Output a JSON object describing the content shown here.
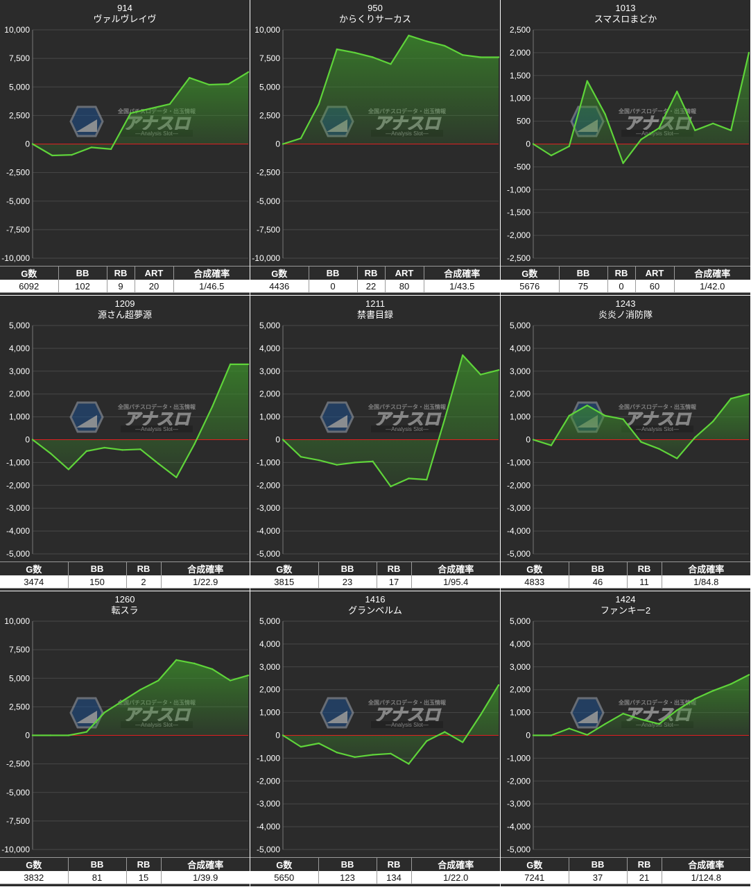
{
  "headers": {
    "g": "G数",
    "bb": "BB",
    "rb": "RB",
    "art": "ART",
    "rate": "合成確率"
  },
  "watermark": {
    "brand": "アナスロ",
    "sub": "—Analysis Slot—",
    "tagline": "全国パチスロデータ・出玉情報"
  },
  "colors": {
    "line": "#5fd43a",
    "zero": "#e02020",
    "fill_top": "#3b8f2a",
    "bg": "#2b2b2b",
    "grid": "#484848"
  },
  "chart_data": [
    {
      "type": "area",
      "number": "914",
      "name": "ヴァルヴレイヴ",
      "ylim": [
        -10000,
        10000
      ],
      "yticks": [
        10000,
        7500,
        5000,
        2500,
        0,
        -2500,
        -5000,
        -7500,
        -10000
      ],
      "ytick_labels": [
        "10,000",
        "7,500",
        "5,000",
        "2,500",
        "0",
        "-2,500",
        "-5,000",
        "-7,500",
        "-10,000"
      ],
      "values": [
        0,
        -1000,
        -950,
        -300,
        -450,
        2700,
        3100,
        3500,
        5800,
        5200,
        5250,
        6300
      ],
      "stats": {
        "g": "6092",
        "bb": "102",
        "rb": "9",
        "art": "20",
        "rate": "1/46.5"
      }
    },
    {
      "type": "area",
      "number": "950",
      "name": "からくりサーカス",
      "ylim": [
        -10000,
        10000
      ],
      "yticks": [
        10000,
        7500,
        5000,
        2500,
        0,
        -2500,
        -5000,
        -7500,
        -10000
      ],
      "ytick_labels": [
        "10,000",
        "7,500",
        "5,000",
        "2,500",
        "0",
        "-2,500",
        "-5,000",
        "-7,500",
        "-10,000"
      ],
      "values": [
        0,
        500,
        3500,
        8300,
        8000,
        7600,
        7000,
        9500,
        9000,
        8600,
        7800,
        7600,
        7600
      ],
      "stats": {
        "g": "4436",
        "bb": "0",
        "rb": "22",
        "art": "80",
        "rate": "1/43.5"
      }
    },
    {
      "type": "area",
      "number": "1013",
      "name": "スマスロまどか",
      "ylim": [
        -2500,
        2500
      ],
      "yticks": [
        2500,
        2000,
        1500,
        1000,
        500,
        0,
        -500,
        -1000,
        -1500,
        -2000,
        -2500
      ],
      "ytick_labels": [
        "2,500",
        "2,000",
        "1,500",
        "1,000",
        "500",
        "0",
        "-500",
        "-1,000",
        "-1,500",
        "-2,000",
        "-2,500"
      ],
      "values": [
        0,
        -250,
        -50,
        1380,
        650,
        -420,
        100,
        350,
        1150,
        300,
        450,
        300,
        2000
      ],
      "stats": {
        "g": "5676",
        "bb": "75",
        "rb": "0",
        "art": "60",
        "rate": "1/42.0"
      }
    },
    {
      "type": "area",
      "number": "1209",
      "name": "源さん超夢源",
      "ylim": [
        -5000,
        5000
      ],
      "yticks": [
        5000,
        4000,
        3000,
        2000,
        1000,
        0,
        -1000,
        -2000,
        -3000,
        -4000,
        -5000
      ],
      "ytick_labels": [
        "5,000",
        "4,000",
        "3,000",
        "2,000",
        "1,000",
        "0",
        "-1,000",
        "-2,000",
        "-3,000",
        "-4,000",
        "-5,000"
      ],
      "values": [
        0,
        -600,
        -1300,
        -500,
        -350,
        -450,
        -420,
        -1050,
        -1650,
        -200,
        1450,
        3300,
        3300
      ],
      "stats": {
        "g": "3474",
        "bb": "150",
        "rb": "2",
        "rate": "1/22.9"
      }
    },
    {
      "type": "area",
      "number": "1211",
      "name": "禁書目録",
      "ylim": [
        -5000,
        5000
      ],
      "yticks": [
        5000,
        4000,
        3000,
        2000,
        1000,
        0,
        -1000,
        -2000,
        -3000,
        -4000,
        -5000
      ],
      "ytick_labels": [
        "5,000",
        "4,000",
        "3,000",
        "2,000",
        "1,000",
        "0",
        "-1,000",
        "-2,000",
        "-3,000",
        "-4,000",
        "-5,000"
      ],
      "values": [
        0,
        -750,
        -900,
        -1100,
        -1000,
        -950,
        -2050,
        -1700,
        -1750,
        900,
        3700,
        2850,
        3050
      ],
      "stats": {
        "g": "3815",
        "bb": "23",
        "rb": "17",
        "rate": "1/95.4"
      }
    },
    {
      "type": "area",
      "number": "1243",
      "name": "炎炎ノ消防隊",
      "ylim": [
        -5000,
        5000
      ],
      "yticks": [
        5000,
        4000,
        3000,
        2000,
        1000,
        0,
        -1000,
        -2000,
        -3000,
        -4000,
        -5000
      ],
      "ytick_labels": [
        "5,000",
        "4,000",
        "3,000",
        "2,000",
        "1,000",
        "0",
        "-1,000",
        "-2,000",
        "-3,000",
        "-4,000",
        "-5,000"
      ],
      "values": [
        0,
        -250,
        1050,
        1500,
        1050,
        900,
        -100,
        -400,
        -820,
        100,
        800,
        1800,
        2000
      ],
      "stats": {
        "g": "4833",
        "bb": "46",
        "rb": "11",
        "rate": "1/84.8"
      }
    },
    {
      "type": "area",
      "number": "1260",
      "name": "転スラ",
      "ylim": [
        -10000,
        10000
      ],
      "yticks": [
        10000,
        7500,
        5000,
        2500,
        0,
        -2500,
        -5000,
        -7500,
        -10000
      ],
      "ytick_labels": [
        "10,000",
        "7,500",
        "5,000",
        "2,500",
        "0",
        "-2,500",
        "-5,000",
        "-7,500",
        "-10,000"
      ],
      "values": [
        0,
        0,
        0,
        300,
        2000,
        3000,
        4000,
        4800,
        6600,
        6300,
        5800,
        4800,
        5250
      ],
      "stats": {
        "g": "3832",
        "bb": "81",
        "rb": "15",
        "rate": "1/39.9"
      }
    },
    {
      "type": "area",
      "number": "1416",
      "name": "グランベルム",
      "ylim": [
        -5000,
        5000
      ],
      "yticks": [
        5000,
        4000,
        3000,
        2000,
        1000,
        0,
        -1000,
        -2000,
        -3000,
        -4000,
        -5000
      ],
      "ytick_labels": [
        "5,000",
        "4,000",
        "3,000",
        "2,000",
        "1,000",
        "0",
        "-1,000",
        "-2,000",
        "-3,000",
        "-4,000",
        "-5,000"
      ],
      "values": [
        0,
        -500,
        -350,
        -750,
        -950,
        -850,
        -800,
        -1250,
        -250,
        150,
        -300,
        900,
        2200
      ],
      "stats": {
        "g": "5650",
        "bb": "123",
        "rb": "134",
        "rate": "1/22.0"
      }
    },
    {
      "type": "area",
      "number": "1424",
      "name": "ファンキー2",
      "ylim": [
        -5000,
        5000
      ],
      "yticks": [
        5000,
        4000,
        3000,
        2000,
        1000,
        0,
        -1000,
        -2000,
        -3000,
        -4000,
        -5000
      ],
      "ytick_labels": [
        "5,000",
        "4,000",
        "3,000",
        "2,000",
        "1,000",
        "0",
        "-1,000",
        "-2,000",
        "-3,000",
        "-4,000",
        "-5,000"
      ],
      "values": [
        0,
        0,
        300,
        20,
        500,
        950,
        700,
        500,
        1100,
        1600,
        1950,
        2250,
        2650
      ],
      "stats": {
        "g": "7241",
        "bb": "37",
        "rb": "21",
        "rate": "1/124.8"
      }
    }
  ]
}
